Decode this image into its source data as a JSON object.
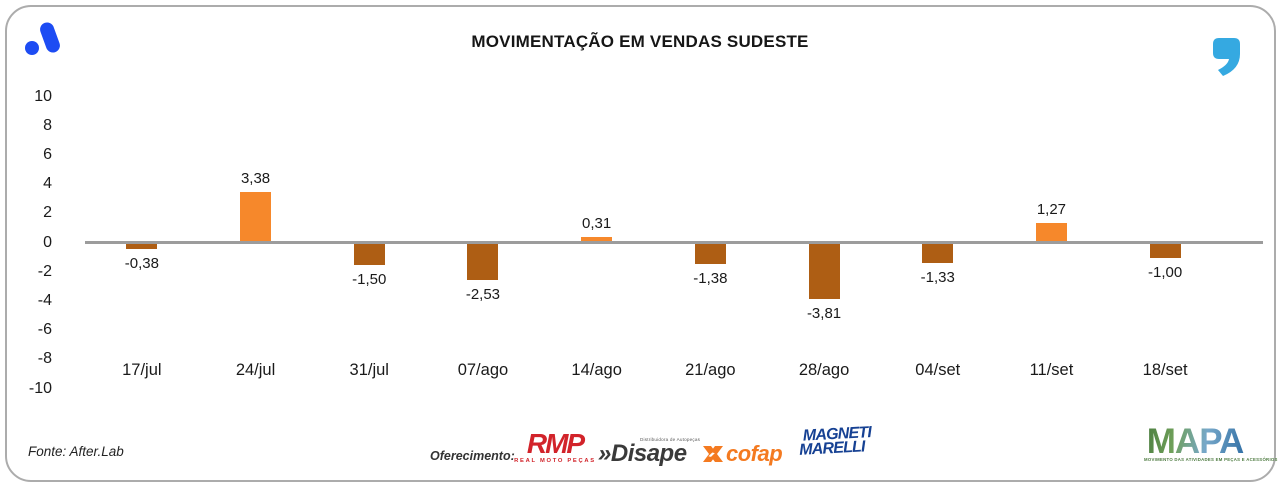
{
  "header": {
    "title": "MOVIMENTAÇÃO EM VENDAS SUDESTE"
  },
  "icons": {
    "brand_logo": "afterlab-logo",
    "quote": "quote-icon",
    "cofap_x": "cofap-x-icon"
  },
  "chart_data": {
    "type": "bar",
    "title": "MOVIMENTAÇÃO EM VENDAS SUDESTE",
    "categories": [
      "17/jul",
      "24/jul",
      "31/jul",
      "07/ago",
      "14/ago",
      "21/ago",
      "28/ago",
      "04/set",
      "11/set",
      "18/set"
    ],
    "values": [
      -0.38,
      3.38,
      -1.5,
      -2.53,
      0.31,
      -1.38,
      -3.81,
      -1.33,
      1.27,
      -1.0
    ],
    "value_labels": [
      "-0,38",
      "3,38",
      "-1,50",
      "-2,53",
      "0,31",
      "-1,38",
      "-3,81",
      "-1,33",
      "1,27",
      "-1,00"
    ],
    "xlabel": "",
    "ylabel": "",
    "ylim": [
      -10,
      10
    ],
    "yticks": [
      10,
      8,
      6,
      4,
      2,
      0,
      -2,
      -4,
      -6,
      -8,
      -10
    ],
    "grid": false,
    "legend": "none",
    "colors": {
      "positive": "#F6882B",
      "negative": "#AE5E14",
      "axis_line": "#9C9C9C",
      "text": "#1A1A1A"
    }
  },
  "footer": {
    "source": "Fonte: After.Lab",
    "sponsor_label": "Oferecimento:",
    "sponsors": [
      {
        "name": "RMP",
        "subtext": "REAL MOTO PEÇAS",
        "color": "#D2232A"
      },
      {
        "name": "Disape",
        "prefix": "»",
        "subtext": "Distribuidora de Autopeças",
        "color": "#3A3A3A"
      },
      {
        "name": "cofap",
        "color": "#F47A20"
      },
      {
        "name": "MAGNETI MARELLI",
        "line1": "MAGNETI",
        "line2": "MARELLI",
        "color": "#164193"
      }
    ],
    "mapa": {
      "name": "MAPA",
      "tagline": "MOVIMENTO DAS ATIVIDADES EM PEÇAS E ACESSÓRIOS"
    }
  },
  "brand_colors": {
    "logo_blue": "#1D4CF3",
    "quote_blue": "#35A9E1"
  }
}
